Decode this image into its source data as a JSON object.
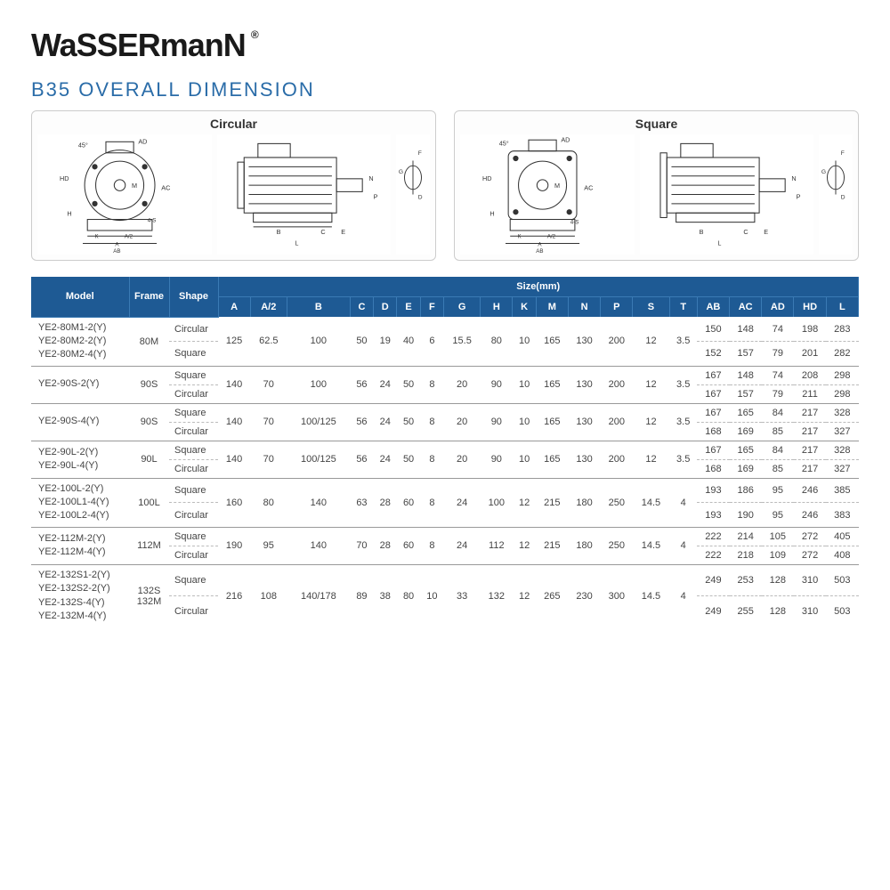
{
  "logo_text": "WaSSERmanN",
  "title": "B35 OVERALL DIMENSION",
  "diagram_labels": {
    "circular": "Circular",
    "square": "Square"
  },
  "diagram_annotations": [
    "45°",
    "AD",
    "HD",
    "H",
    "M",
    "AC",
    "K",
    "A/2",
    "A",
    "AB",
    "4-S",
    "B",
    "C",
    "E",
    "L",
    "N",
    "P",
    "F",
    "G",
    "D"
  ],
  "table": {
    "header_groups": {
      "model": "Model",
      "frame": "Frame",
      "shape": "Shape",
      "size": "Size(mm)"
    },
    "size_cols": [
      "A",
      "A/2",
      "B",
      "C",
      "D",
      "E",
      "F",
      "G",
      "H",
      "K",
      "M",
      "N",
      "P",
      "S",
      "T",
      "AB",
      "AC",
      "AD",
      "HD",
      "L"
    ],
    "groups": [
      {
        "models": "YE2-80M1-2(Y)\nYE2-80M2-2(Y)\nYE2-80M2-4(Y)",
        "frame": "80M",
        "shared": [
          "125",
          "62.5",
          "100",
          "50",
          "19",
          "40",
          "6",
          "15.5",
          "80",
          "10",
          "165",
          "130",
          "200",
          "12",
          "3.5"
        ],
        "rows": [
          {
            "shape": "Circular",
            "vals": [
              "150",
              "148",
              "74",
              "198",
              "283"
            ]
          },
          {
            "shape": "Square",
            "vals": [
              "152",
              "157",
              "79",
              "201",
              "282"
            ]
          }
        ]
      },
      {
        "models": "YE2-90S-2(Y)",
        "frame": "90S",
        "shared": [
          "140",
          "70",
          "100",
          "56",
          "24",
          "50",
          "8",
          "20",
          "90",
          "10",
          "165",
          "130",
          "200",
          "12",
          "3.5"
        ],
        "rows": [
          {
            "shape": "Square",
            "vals": [
              "167",
              "148",
              "74",
              "208",
              "298"
            ]
          },
          {
            "shape": "Circular",
            "vals": [
              "167",
              "157",
              "79",
              "211",
              "298"
            ]
          }
        ]
      },
      {
        "models": "YE2-90S-4(Y)",
        "frame": "90S",
        "shared": [
          "140",
          "70",
          "100/125",
          "56",
          "24",
          "50",
          "8",
          "20",
          "90",
          "10",
          "165",
          "130",
          "200",
          "12",
          "3.5"
        ],
        "rows": [
          {
            "shape": "Square",
            "vals": [
              "167",
              "165",
              "84",
              "217",
              "328"
            ]
          },
          {
            "shape": "Circular",
            "vals": [
              "168",
              "169",
              "85",
              "217",
              "327"
            ]
          }
        ]
      },
      {
        "models": "YE2-90L-2(Y)\nYE2-90L-4(Y)",
        "frame": "90L",
        "shared": [
          "140",
          "70",
          "100/125",
          "56",
          "24",
          "50",
          "8",
          "20",
          "90",
          "10",
          "165",
          "130",
          "200",
          "12",
          "3.5"
        ],
        "rows": [
          {
            "shape": "Square",
            "vals": [
              "167",
              "165",
              "84",
              "217",
              "328"
            ]
          },
          {
            "shape": "Circular",
            "vals": [
              "168",
              "169",
              "85",
              "217",
              "327"
            ]
          }
        ]
      },
      {
        "models": "YE2-100L-2(Y)\nYE2-100L1-4(Y)\nYE2-100L2-4(Y)",
        "frame": "100L",
        "shared": [
          "160",
          "80",
          "140",
          "63",
          "28",
          "60",
          "8",
          "24",
          "100",
          "12",
          "215",
          "180",
          "250",
          "14.5",
          "4"
        ],
        "rows": [
          {
            "shape": "Square",
            "vals": [
              "193",
              "186",
              "95",
              "246",
              "385"
            ]
          },
          {
            "shape": "Circular",
            "vals": [
              "193",
              "190",
              "95",
              "246",
              "383"
            ]
          }
        ]
      },
      {
        "models": "YE2-112M-2(Y)\nYE2-112M-4(Y)",
        "frame": "112M",
        "shared": [
          "190",
          "95",
          "140",
          "70",
          "28",
          "60",
          "8",
          "24",
          "112",
          "12",
          "215",
          "180",
          "250",
          "14.5",
          "4"
        ],
        "rows": [
          {
            "shape": "Square",
            "vals": [
              "222",
              "214",
              "105",
              "272",
              "405"
            ]
          },
          {
            "shape": "Circular",
            "vals": [
              "222",
              "218",
              "109",
              "272",
              "408"
            ]
          }
        ]
      },
      {
        "models": "YE2-132S1-2(Y)\nYE2-132S2-2(Y)\nYE2-132S-4(Y)\nYE2-132M-4(Y)",
        "frame": "132S\n132M",
        "shared": [
          "216",
          "108",
          "140/178",
          "89",
          "38",
          "80",
          "10",
          "33",
          "132",
          "12",
          "265",
          "230",
          "300",
          "14.5",
          "4"
        ],
        "rows": [
          {
            "shape": "Square",
            "vals": [
              "249",
              "253",
              "128",
              "310",
              "503"
            ]
          },
          {
            "shape": "Circular",
            "vals": [
              "249",
              "255",
              "128",
              "310",
              "503"
            ]
          }
        ]
      }
    ]
  },
  "colors": {
    "header_bg": "#1e5a94",
    "title": "#2a6ca8",
    "text": "#444444"
  }
}
